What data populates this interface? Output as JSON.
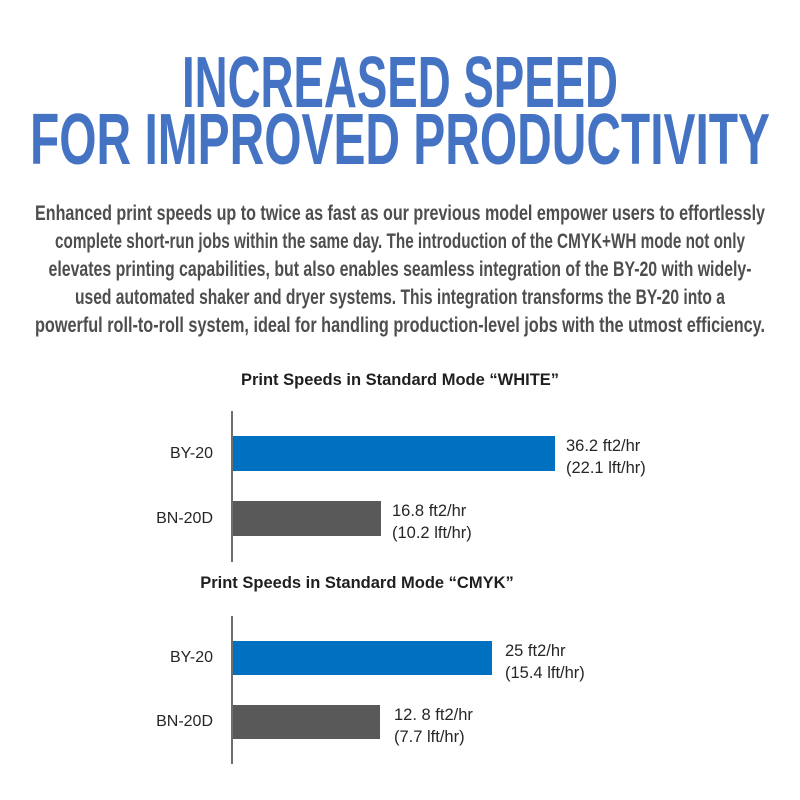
{
  "header": {
    "line1": "INCREASED SPEED",
    "line2": "FOR IMPROVED PRODUCTIVITY",
    "color": "#4573C4"
  },
  "intro": {
    "color": "#4e4e50",
    "lines": [
      "Enhanced print speeds up to twice as fast as our previous model empower users to effortlessly",
      "complete short-run jobs within the same day. The introduction of the CMYK+WH mode not only",
      "elevates printing capabilities, but also enables seamless integration of the BY-20 with widely-",
      "used automated shaker and dryer systems. This integration transforms the BY-20 into a",
      "powerful roll-to-roll system, ideal for handling production-level jobs with the utmost efficiency."
    ]
  },
  "chart_data": [
    {
      "type": "bar",
      "orientation": "horizontal",
      "title": "Print Speeds in Standard Mode “WHITE”",
      "categories": [
        "BY-20",
        "BN-20D"
      ],
      "values": [
        36.2,
        16.8
      ],
      "units": "ft2/hr",
      "value_labels": [
        {
          "line1": "36.2 ft2/hr",
          "line2": "(22.1 lft/hr)"
        },
        {
          "line1": "16.8 ft2/hr",
          "line2": "(10.2 lft/hr)"
        }
      ],
      "bar_colors": [
        "#0070C0",
        "#595959"
      ],
      "xlim": [
        0,
        36.2
      ],
      "gridlines": false,
      "legend": false,
      "value_axis_visible": false
    },
    {
      "type": "bar",
      "orientation": "horizontal",
      "title": "Print Speeds in Standard Mode “CMYK”",
      "categories": [
        "BY-20",
        "BN-20D"
      ],
      "values": [
        25,
        12.8
      ],
      "units": "ft2/hr",
      "value_labels": [
        {
          "line1": "25 ft2/hr",
          "line2": "(15.4 lft/hr)"
        },
        {
          "line1": "12. 8 ft2/hr",
          "line2": "(7.7 lft/hr)"
        }
      ],
      "bar_colors": [
        "#0070C0",
        "#595959"
      ],
      "xlim": [
        0,
        25
      ],
      "gridlines": false,
      "legend": false,
      "value_axis_visible": false
    }
  ],
  "colors": {
    "heading_blue": "#4573C4",
    "body_gray": "#4e4e50",
    "bar_blue": "#0070C0",
    "bar_gray": "#595959",
    "axis_gray": "#6e6e6e",
    "chart_text": "#262626"
  }
}
